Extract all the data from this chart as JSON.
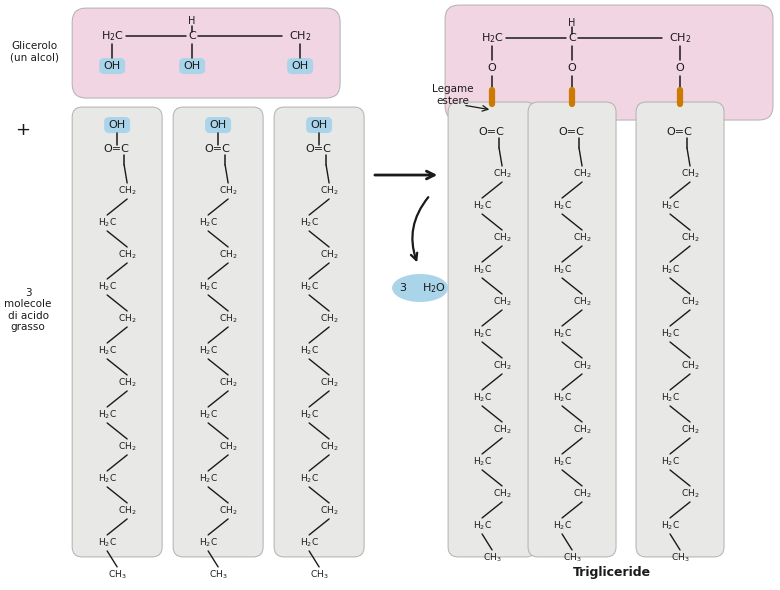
{
  "bg_color": "#ffffff",
  "pink_bg": "#f2d5e2",
  "gray_bg": "#e8e8e6",
  "blue_bg": "#aad4ea",
  "orange_bond": "#cc7a00",
  "text_color": "#1a1a1a",
  "fig_width": 7.8,
  "fig_height": 5.9,
  "labels": {
    "glycerol": "Glicerolo\n(un alcol)",
    "plus": "+",
    "mol_label": "3\nmolecole\ndi acido\ngrasso",
    "legame_estere": "Legame\nestere",
    "trigliceride": "Trigliceride"
  }
}
